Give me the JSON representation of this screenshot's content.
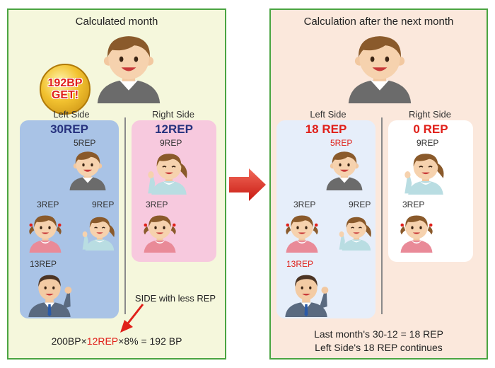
{
  "left_panel": {
    "title": "Calculated month",
    "badge": [
      "192BP",
      "GET!"
    ],
    "left_side": {
      "label": "Left Side",
      "total": "30REP",
      "reps": [
        "5REP",
        "3REP",
        "9REP",
        "13REP"
      ]
    },
    "right_side": {
      "label": "Right Side",
      "total": "12REP",
      "reps": [
        "9REP",
        "3REP"
      ]
    },
    "annotation": "SIDE with less REP",
    "formula": {
      "prefix": "200BP×",
      "highlight": "12REP",
      "suffix": "×8% = 192 BP"
    }
  },
  "right_panel": {
    "title": "Calculation after the next month",
    "left_side": {
      "label": "Left Side",
      "total": "18 REP",
      "reps": [
        "5REP",
        "3REP",
        "9REP",
        "13REP"
      ]
    },
    "right_side": {
      "label": "Right Side",
      "total": "0 REP",
      "reps": [
        "9REP",
        "3REP"
      ]
    },
    "notes": [
      "Last month's 30-12 = 18 REP",
      "Left Side's 18 REP continues"
    ]
  },
  "colors": {
    "panel_border": "#4aa441",
    "left_panel_bg": "#f5f7dc",
    "right_panel_bg": "#fbe8dc",
    "blue_side": "#a9c3e6",
    "pink_side": "#f7c9de",
    "light_blue_side": "#e6eefa",
    "white_side": "#ffffff",
    "total_blue": "#27327e",
    "total_red": "#e0201a",
    "arrow_red": "#e0201a"
  }
}
